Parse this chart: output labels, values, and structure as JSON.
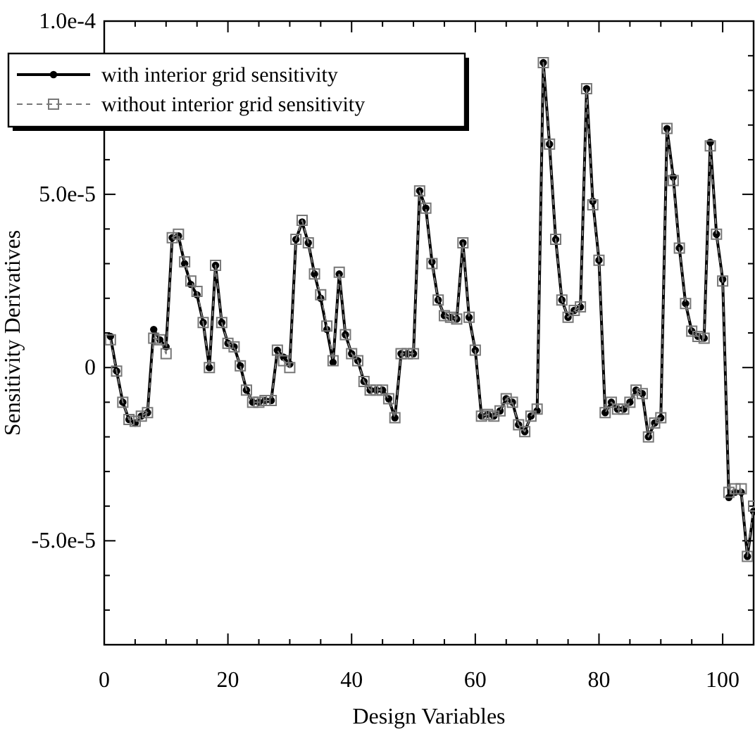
{
  "chart_data": {
    "type": "line",
    "xlabel": "Design Variables",
    "ylabel": "Sensitivity Derivatives",
    "x": [
      1,
      2,
      3,
      4,
      5,
      6,
      7,
      8,
      9,
      10,
      11,
      12,
      13,
      14,
      15,
      16,
      17,
      18,
      19,
      20,
      21,
      22,
      23,
      24,
      25,
      26,
      27,
      28,
      29,
      30,
      31,
      32,
      33,
      34,
      35,
      36,
      37,
      38,
      39,
      40,
      41,
      42,
      43,
      44,
      45,
      46,
      47,
      48,
      49,
      50,
      51,
      52,
      53,
      54,
      55,
      56,
      57,
      58,
      59,
      60,
      61,
      62,
      63,
      64,
      65,
      66,
      67,
      68,
      69,
      70,
      71,
      72,
      73,
      74,
      75,
      76,
      77,
      78,
      79,
      80,
      81,
      82,
      83,
      84,
      85,
      86,
      87,
      88,
      89,
      90,
      91,
      92,
      93,
      94,
      95,
      96,
      97,
      98,
      99,
      100,
      101,
      102,
      103,
      104,
      105
    ],
    "series": [
      {
        "name": "with interior grid sensitivity",
        "color": "#000000",
        "marker": "circle",
        "line_style": "solid",
        "values": [
          9e-06,
          -1e-06,
          -1e-05,
          -1.5e-05,
          -1.6e-05,
          -1.4e-05,
          -1.3e-05,
          1.1e-05,
          8e-06,
          6e-06,
          3.75e-05,
          3.8e-05,
          3e-05,
          2.4e-05,
          2.1e-05,
          1.3e-05,
          0,
          2.95e-05,
          1.3e-05,
          7e-06,
          6e-06,
          5e-07,
          -6.5e-06,
          -1e-05,
          -1e-05,
          -9.5e-06,
          -9.5e-06,
          5e-06,
          3e-06,
          1e-06,
          3.7e-05,
          4.2e-05,
          3.6e-05,
          2.7e-05,
          2e-05,
          1.1e-05,
          1.5e-06,
          2.7e-05,
          9.5e-06,
          4e-06,
          2e-06,
          -4e-06,
          -6.5e-06,
          -6.5e-06,
          -6.5e-06,
          -9e-06,
          -1.45e-05,
          4e-06,
          4e-06,
          4e-06,
          5.1e-05,
          4.6e-05,
          3.05e-05,
          1.95e-05,
          1.5e-05,
          1.45e-05,
          1.4e-05,
          3.6e-05,
          1.45e-05,
          5e-06,
          -1.4e-05,
          -1.35e-05,
          -1.4e-05,
          -1.25e-05,
          -9e-06,
          -1e-05,
          -1.65e-05,
          -1.85e-05,
          -1.4e-05,
          -1.25e-05,
          8.8e-05,
          6.45e-05,
          3.7e-05,
          1.95e-05,
          1.45e-05,
          1.65e-05,
          1.75e-05,
          8.05e-05,
          4.8e-05,
          3.1e-05,
          -1.3e-05,
          -1e-05,
          -1.2e-05,
          -1.2e-05,
          -1e-05,
          -6.5e-06,
          -7.5e-06,
          -2e-05,
          -1.6e-05,
          -1.45e-05,
          6.9e-05,
          5.5e-05,
          3.45e-05,
          1.85e-05,
          1.05e-05,
          9e-06,
          8.5e-06,
          6.5e-05,
          3.85e-05,
          2.55e-05,
          -3.75e-05,
          -3.6e-05,
          -3.6e-05,
          -5.45e-05,
          -4.15e-05
        ]
      },
      {
        "name": "without interior grid sensitivity",
        "color": "#777777",
        "marker": "square",
        "line_style": "dashed",
        "values": [
          8e-06,
          -1e-06,
          -1e-05,
          -1.5e-05,
          -1.55e-05,
          -1.4e-05,
          -1.3e-05,
          8.5e-06,
          8e-06,
          4e-06,
          3.75e-05,
          3.85e-05,
          3.05e-05,
          2.5e-05,
          2.2e-05,
          1.3e-05,
          0,
          2.95e-05,
          1.3e-05,
          7e-06,
          6e-06,
          5e-07,
          -6.5e-06,
          -1e-05,
          -1e-05,
          -9.5e-06,
          -9.5e-06,
          5e-06,
          2e-06,
          0,
          3.7e-05,
          4.25e-05,
          3.6e-05,
          2.7e-05,
          2.1e-05,
          1.2e-05,
          2e-06,
          2.75e-05,
          9.5e-06,
          4e-06,
          2e-06,
          -4e-06,
          -6.5e-06,
          -6.5e-06,
          -6.5e-06,
          -9e-06,
          -1.45e-05,
          4e-06,
          4e-06,
          4e-06,
          5.1e-05,
          4.6e-05,
          3e-05,
          1.95e-05,
          1.5e-05,
          1.45e-05,
          1.4e-05,
          3.6e-05,
          1.45e-05,
          5e-06,
          -1.4e-05,
          -1.35e-05,
          -1.4e-05,
          -1.25e-05,
          -9e-06,
          -1e-05,
          -1.65e-05,
          -1.85e-05,
          -1.4e-05,
          -1.2e-05,
          8.8e-05,
          6.45e-05,
          3.7e-05,
          1.95e-05,
          1.45e-05,
          1.65e-05,
          1.75e-05,
          8.05e-05,
          4.7e-05,
          3.1e-05,
          -1.3e-05,
          -1e-05,
          -1.2e-05,
          -1.2e-05,
          -1e-05,
          -6.5e-06,
          -7.5e-06,
          -2e-05,
          -1.6e-05,
          -1.45e-05,
          6.9e-05,
          5.4e-05,
          3.45e-05,
          1.85e-05,
          1.05e-05,
          9e-06,
          8.5e-06,
          6.4e-05,
          3.85e-05,
          2.5e-05,
          -3.6e-05,
          -3.5e-05,
          -3.5e-05,
          -5.45e-05,
          -4e-05
        ]
      }
    ],
    "xlim": [
      0,
      105
    ],
    "ylim": [
      -8e-05,
      0.0001
    ],
    "xticks": [
      0,
      {
        "value": 5,
        "label": null
      },
      {
        "value": 10,
        "label": null
      },
      {
        "value": 15,
        "label": null
      },
      20,
      {
        "value": 25,
        "label": null
      },
      {
        "value": 30,
        "label": null
      },
      {
        "value": 35,
        "label": null
      },
      40,
      {
        "value": 45,
        "label": null
      },
      {
        "value": 50,
        "label": null
      },
      {
        "value": 55,
        "label": null
      },
      60,
      {
        "value": 65,
        "label": null
      },
      {
        "value": 70,
        "label": null
      },
      {
        "value": 75,
        "label": null
      },
      80,
      {
        "value": 85,
        "label": null
      },
      {
        "value": 90,
        "label": null
      },
      {
        "value": 95,
        "label": null
      },
      100
    ],
    "yticks": [
      {
        "value": -8e-05,
        "label": null
      },
      {
        "value": -7e-05,
        "label": null
      },
      {
        "value": -6e-05,
        "label": null
      },
      {
        "value": -5e-05,
        "label": "-5.0e-5"
      },
      {
        "value": -4e-05,
        "label": null
      },
      {
        "value": -3e-05,
        "label": null
      },
      {
        "value": -2e-05,
        "label": null
      },
      {
        "value": -1e-05,
        "label": null
      },
      0,
      {
        "value": 1e-05,
        "label": null
      },
      {
        "value": 2e-05,
        "label": null
      },
      {
        "value": 3e-05,
        "label": null
      },
      {
        "value": 4e-05,
        "label": null
      },
      {
        "value": 5e-05,
        "label": "5.0e-5"
      },
      {
        "value": 6e-05,
        "label": null
      },
      {
        "value": 7e-05,
        "label": null
      },
      {
        "value": 8e-05,
        "label": null
      },
      {
        "value": 9e-05,
        "label": null
      },
      {
        "value": 0.0001,
        "label": "1.0e-4"
      }
    ],
    "grid": false,
    "legend": "top left"
  }
}
